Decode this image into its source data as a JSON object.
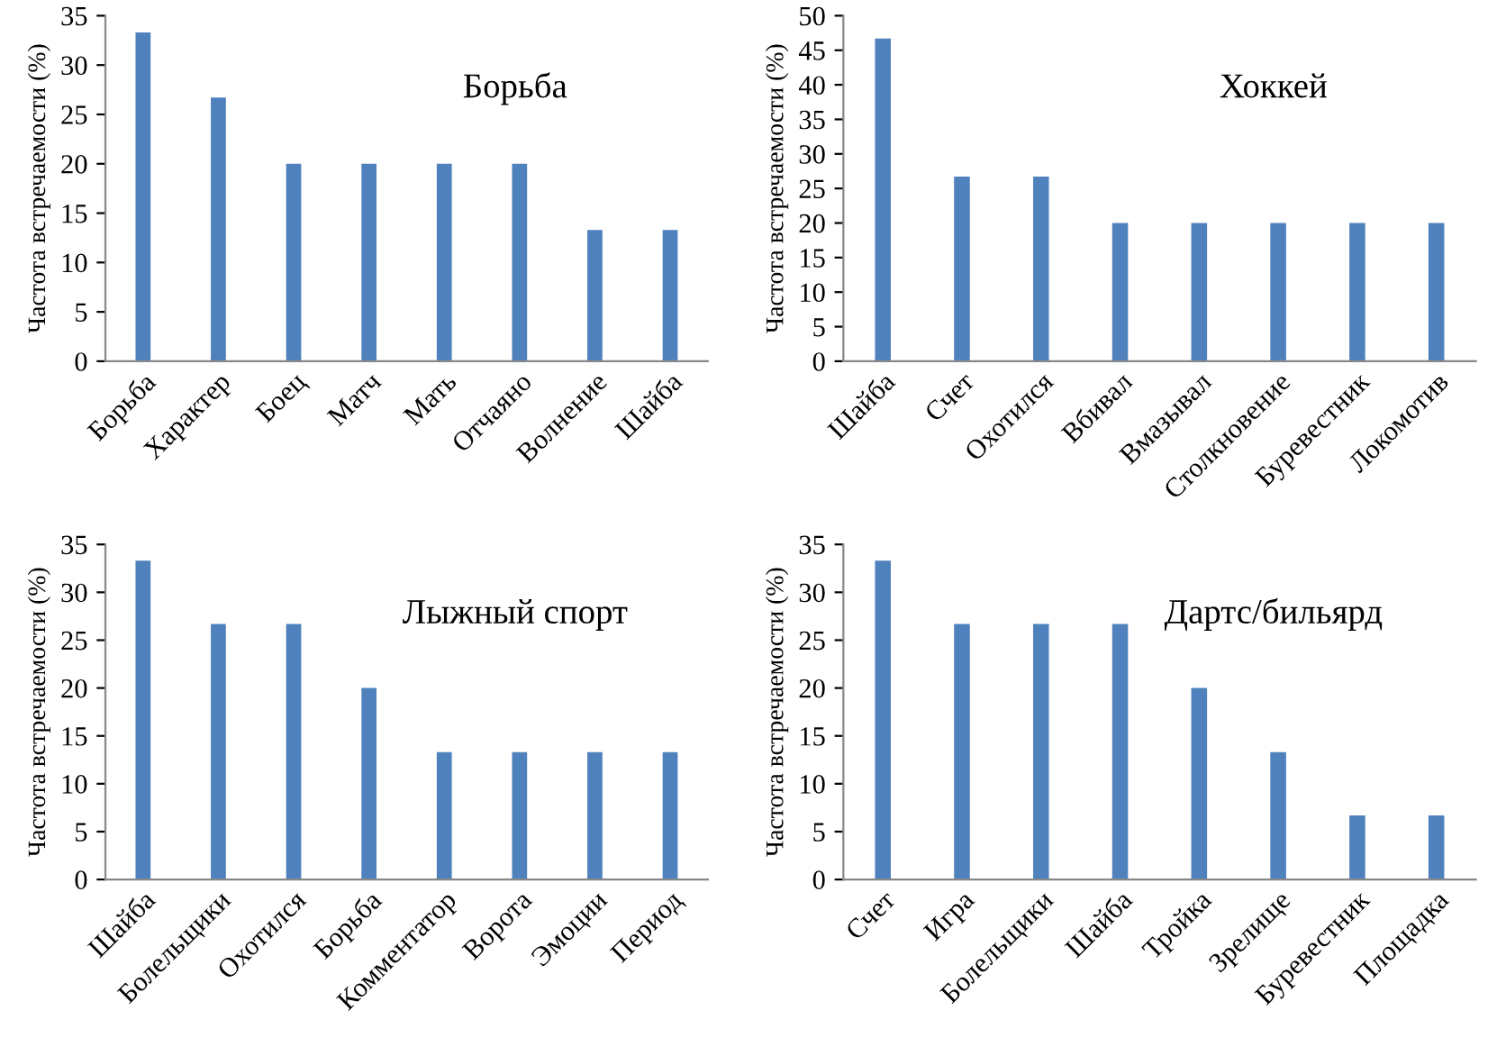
{
  "chart_data": [
    {
      "type": "bar",
      "title": "Борьба",
      "ylabel": "Частота встречаемости (%)",
      "categories": [
        "Борьба",
        "Характер",
        "Боец",
        "Матч",
        "Мать",
        "Отчаяно",
        "Волнение",
        "Шайба"
      ],
      "values": [
        33.3,
        26.7,
        20,
        20,
        20,
        20,
        13.3,
        13.3
      ],
      "color": "#4f81bd",
      "ylim": [
        0,
        35
      ],
      "yticks": [
        0,
        5,
        10,
        15,
        20,
        25,
        30,
        35
      ],
      "grid": false,
      "legend": false
    },
    {
      "type": "bar",
      "title": "Хоккей",
      "ylabel": "Частота встречаемости (%)",
      "categories": [
        "Шайба",
        "Счет",
        "Охотился",
        "Вбивал",
        "Вмазывал",
        "Столкновение",
        "Буревестник",
        "Локомотив"
      ],
      "values": [
        46.7,
        26.7,
        26.7,
        20,
        20,
        20,
        20,
        20
      ],
      "color": "#4f81bd",
      "ylim": [
        0,
        50
      ],
      "yticks": [
        0,
        5,
        10,
        15,
        20,
        25,
        30,
        35,
        40,
        45,
        50
      ],
      "grid": false,
      "legend": false
    },
    {
      "type": "bar",
      "title": "Лыжный спорт",
      "ylabel": "Частота встречаемости (%)",
      "categories": [
        "Шайба",
        "Болельщики",
        "Охотился",
        "Борьба",
        "Комментатор",
        "Ворота",
        "Эмоции",
        "Период"
      ],
      "values": [
        33.3,
        26.7,
        26.7,
        20,
        13.3,
        13.3,
        13.3,
        13.3
      ],
      "color": "#4f81bd",
      "ylim": [
        0,
        35
      ],
      "yticks": [
        0,
        5,
        10,
        15,
        20,
        25,
        30,
        35
      ],
      "grid": false,
      "legend": false
    },
    {
      "type": "bar",
      "title": "Дартс/бильярд",
      "ylabel": "Частота встречаемости (%)",
      "categories": [
        "Счет",
        "Игра",
        "Болельщики",
        "Шайба",
        "Тройка",
        "Зрелище",
        "Буревестник",
        "Площадка"
      ],
      "values": [
        33.3,
        26.7,
        26.7,
        26.7,
        20,
        13.3,
        6.7,
        6.7
      ],
      "color": "#4f81bd",
      "ylim": [
        0,
        35
      ],
      "yticks": [
        0,
        5,
        10,
        15,
        20,
        25,
        30,
        35
      ],
      "grid": false,
      "legend": false
    }
  ]
}
